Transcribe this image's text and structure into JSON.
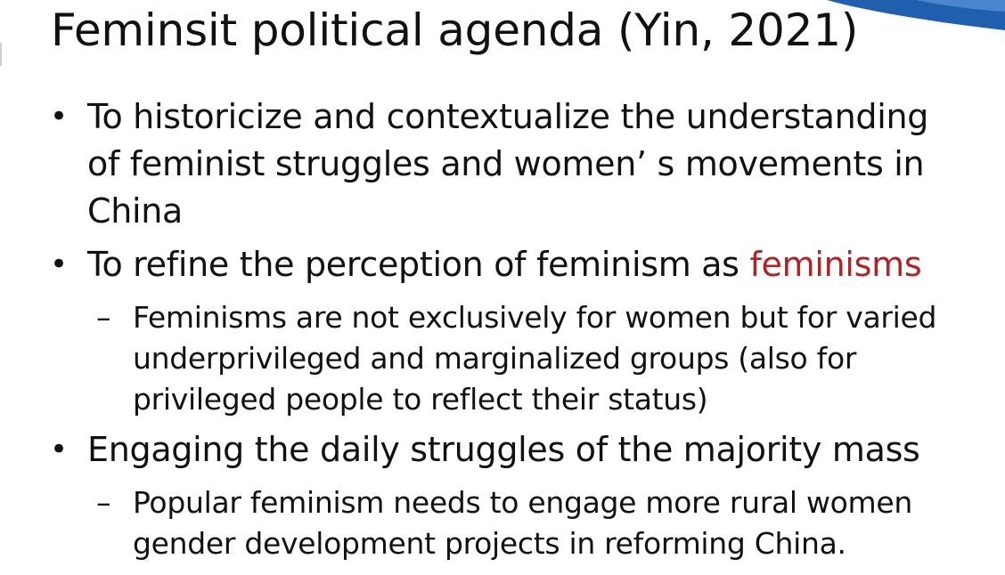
{
  "slide": {
    "title": "Feminsit political agenda (Yin, 2021)",
    "bullet_symbol": "•",
    "dash_symbol": "–",
    "accent_color": "#b22222",
    "bullets": [
      {
        "text": "To historicize and contextualize the understanding of feminist struggles and women’ s movements in China"
      },
      {
        "text_prefix": "To refine the perception of feminism as ",
        "text_accent": "feminisms",
        "sub": "Feminisms are not exclusively for women but for varied underprivileged and marginalized groups (also for privileged people to reflect their status)"
      },
      {
        "text": "Engaging the daily struggles of the majority mass",
        "sub": "Popular feminism needs to engage more rural women gender development projects in reforming China."
      }
    ]
  }
}
